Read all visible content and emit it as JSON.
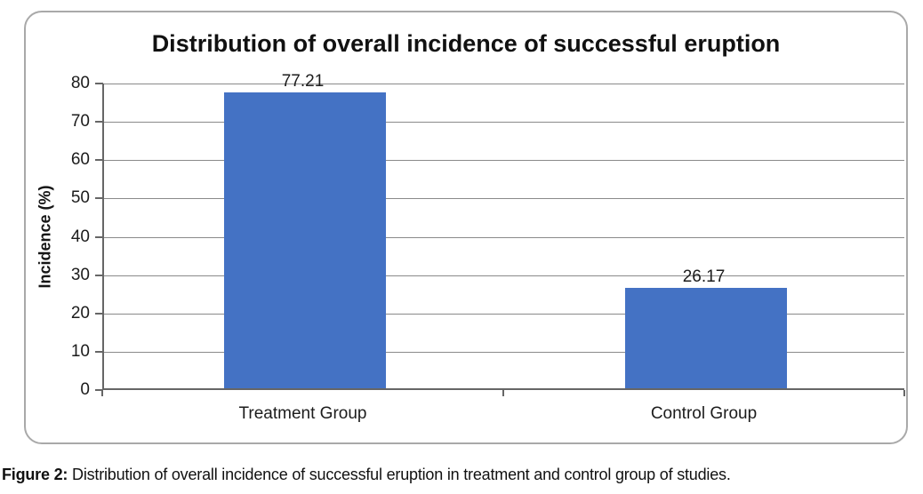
{
  "figure": {
    "caption_label": "Figure 2:",
    "caption_text": " Distribution of overall incidence of successful eruption in treatment and control group of studies."
  },
  "chart_data": {
    "type": "bar",
    "title": "Distribution of overall incidence of successful eruption",
    "categories": [
      "Treatment Group",
      "Control Group"
    ],
    "values": [
      77.21,
      26.17
    ],
    "data_labels": [
      "77.21",
      "26.17"
    ],
    "xlabel": "",
    "ylabel": "Incidence (%)",
    "ylim": [
      0,
      80
    ],
    "ytick_interval": 10,
    "yticks": [
      80,
      70,
      60,
      50,
      40,
      30,
      20,
      10,
      0
    ],
    "grid": true,
    "legend": false,
    "bar_color": "#4472C4",
    "gridline_color": "#8a8a8a",
    "axis_color": "#666666",
    "frame_border_color": "#a9a9a9"
  }
}
